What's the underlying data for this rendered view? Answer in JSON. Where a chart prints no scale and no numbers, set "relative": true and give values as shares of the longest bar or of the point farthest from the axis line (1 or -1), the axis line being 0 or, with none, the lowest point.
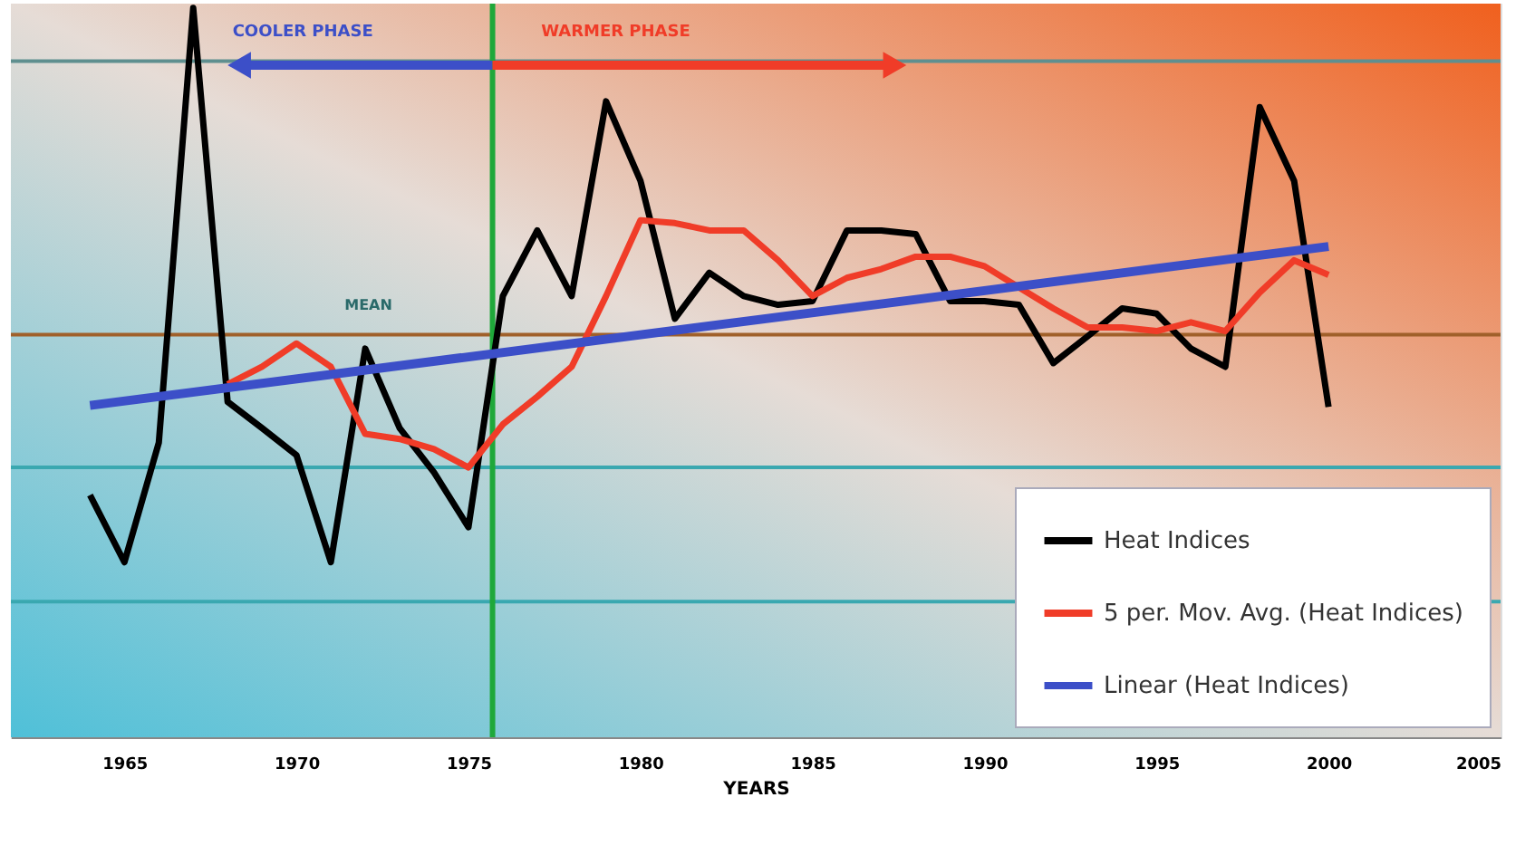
{
  "chart_data": {
    "type": "line",
    "relative": true,
    "xlabel": "YEARS",
    "xlim": [
      1961.7,
      2005
    ],
    "xticks": [
      1965,
      1970,
      1975,
      1980,
      1985,
      1990,
      1995,
      2000,
      2005
    ],
    "series": [
      {
        "name": "Heat Indices",
        "color": "#000000",
        "x": [
          1964,
          1965,
          1966,
          1967,
          1968,
          1969,
          1970,
          1971,
          1972,
          1973,
          1974,
          1975,
          1976,
          1977,
          1978,
          1979,
          1980,
          1981,
          1982,
          1983,
          1984,
          1985,
          1986,
          1987,
          1988,
          1989,
          1990,
          1991,
          1992,
          1993,
          1994,
          1995,
          1996,
          1997,
          1998,
          1999,
          2000
        ],
        "values": [
          0.332,
          0.24,
          0.404,
          1,
          0.46,
          0.424,
          0.387,
          0.24,
          0.533,
          0.424,
          0.363,
          0.288,
          0.605,
          0.695,
          0.605,
          0.872,
          0.763,
          0.574,
          0.637,
          0.605,
          0.593,
          0.598,
          0.695,
          0.695,
          0.69,
          0.598,
          0.598,
          0.593,
          0.513,
          0.55,
          0.588,
          0.581,
          0.533,
          0.508,
          0.864,
          0.763,
          0.453
        ]
      },
      {
        "name": "5 per. Mov. Avg. (Heat Indices)",
        "color": "#f03c28",
        "x": [
          1968,
          1969,
          1970,
          1971,
          1972,
          1973,
          1974,
          1975,
          1976,
          1977,
          1978,
          1979,
          1980,
          1981,
          1982,
          1983,
          1984,
          1985,
          1986,
          1987,
          1988,
          1989,
          1990,
          1991,
          1992,
          1993,
          1994,
          1995,
          1996,
          1997,
          1998,
          1999,
          2000
        ],
        "values": [
          0.484,
          0.508,
          0.54,
          0.508,
          0.416,
          0.409,
          0.395,
          0.37,
          0.429,
          0.467,
          0.508,
          0.605,
          0.709,
          0.705,
          0.695,
          0.695,
          0.654,
          0.605,
          0.63,
          0.642,
          0.659,
          0.659,
          0.646,
          0.617,
          0.588,
          0.562,
          0.562,
          0.557,
          0.569,
          0.557,
          0.61,
          0.654,
          0.634
        ]
      },
      {
        "name": "Linear (Heat Indices)",
        "color": "#3c4fc8",
        "x": [
          1964,
          2000
        ],
        "values": [
          0.455,
          0.673
        ]
      }
    ],
    "ref_lines": [
      {
        "axis": "y",
        "value": 0.552,
        "label": "MEAN",
        "color": "#a0602a"
      },
      {
        "axis": "y",
        "value": 0.927,
        "color": "#5f8f8f"
      },
      {
        "axis": "y",
        "value": 0.37,
        "color": "#3aa8b0"
      },
      {
        "axis": "y",
        "value": 0.186,
        "color": "#3aa8b0"
      },
      {
        "axis": "x",
        "value": 1975.7,
        "color": "#1fa83a"
      }
    ],
    "annotations": [
      "COOLER PHASE",
      "WARMER PHASE"
    ],
    "legend": "bottom right",
    "line_style": "solid",
    "marker": "none"
  }
}
